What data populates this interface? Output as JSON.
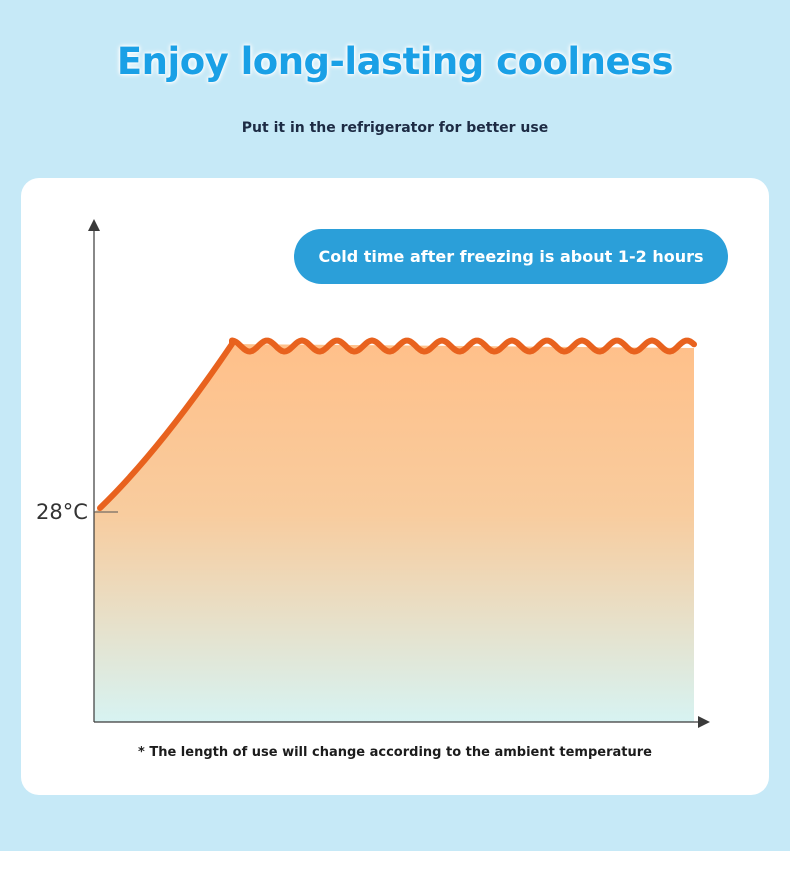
{
  "header": {
    "title": "Enjoy long-lasting coolness",
    "subtitle": "Put it in the refrigerator for better use"
  },
  "chart_data": {
    "type": "area",
    "title": "",
    "xlabel": "",
    "ylabel": "",
    "y_tick_labels": [
      "28°C"
    ],
    "annotation": "Cold time after freezing is about 1-2 hours",
    "footnote": "* The length of use will change according to the ambient temperature",
    "colors": {
      "line": "#e8621e",
      "fill_top": "#ffc08a",
      "fill_bottom": "#d7f3f2",
      "axis": "#3a3a3a",
      "annotation_bg": "#2b9fd9"
    }
  }
}
